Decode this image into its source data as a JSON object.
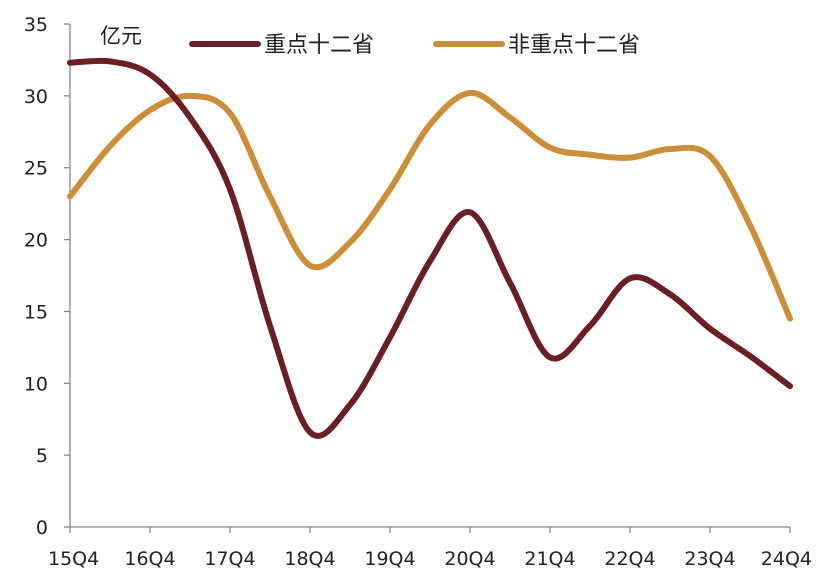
{
  "chart_data": {
    "type": "line",
    "unit_label": "亿元",
    "categories": [
      "15Q4",
      "16Q4",
      "17Q4",
      "18Q4",
      "19Q4",
      "20Q4",
      "21Q4",
      "22Q4",
      "23Q4",
      "24Q4"
    ],
    "ylim": [
      0,
      35
    ],
    "yticks": [
      0,
      5,
      10,
      15,
      20,
      25,
      30,
      35
    ],
    "grid": false,
    "legend_position": "top",
    "series": [
      {
        "name": "重点十二省",
        "color": "#6b1f22",
        "points": [
          {
            "x": 0,
            "y": 32.3
          },
          {
            "x": 0.5,
            "y": 32.4
          },
          {
            "x": 1,
            "y": 31.5
          },
          {
            "x": 1.5,
            "y": 28.5
          },
          {
            "x": 2,
            "y": 23.5
          },
          {
            "x": 2.5,
            "y": 14.0
          },
          {
            "x": 3,
            "y": 6.6
          },
          {
            "x": 3.5,
            "y": 8.5
          },
          {
            "x": 4,
            "y": 13.2
          },
          {
            "x": 4.5,
            "y": 18.5
          },
          {
            "x": 5,
            "y": 21.9
          },
          {
            "x": 5.5,
            "y": 17.0
          },
          {
            "x": 6,
            "y": 11.8
          },
          {
            "x": 6.5,
            "y": 14.0
          },
          {
            "x": 7,
            "y": 17.3
          },
          {
            "x": 7.5,
            "y": 16.2
          },
          {
            "x": 8,
            "y": 13.8
          },
          {
            "x": 8.5,
            "y": 11.9
          },
          {
            "x": 9,
            "y": 9.8
          }
        ]
      },
      {
        "name": "非重点十二省",
        "color": "#cc8f38",
        "points": [
          {
            "x": 0,
            "y": 23.0
          },
          {
            "x": 0.5,
            "y": 26.5
          },
          {
            "x": 1,
            "y": 29.0
          },
          {
            "x": 1.5,
            "y": 30.0
          },
          {
            "x": 2,
            "y": 28.8
          },
          {
            "x": 2.5,
            "y": 23.0
          },
          {
            "x": 3,
            "y": 18.2
          },
          {
            "x": 3.5,
            "y": 19.8
          },
          {
            "x": 4,
            "y": 23.5
          },
          {
            "x": 4.5,
            "y": 28.0
          },
          {
            "x": 5,
            "y": 30.2
          },
          {
            "x": 5.5,
            "y": 28.5
          },
          {
            "x": 6,
            "y": 26.4
          },
          {
            "x": 6.5,
            "y": 25.9
          },
          {
            "x": 7,
            "y": 25.7
          },
          {
            "x": 7.5,
            "y": 26.3
          },
          {
            "x": 8,
            "y": 25.8
          },
          {
            "x": 8.5,
            "y": 21.0
          },
          {
            "x": 9,
            "y": 14.5
          }
        ]
      }
    ]
  }
}
